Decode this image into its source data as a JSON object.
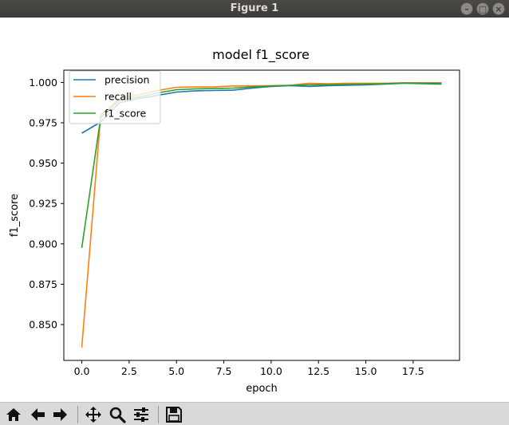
{
  "window": {
    "title": "Figure 1",
    "controls": {
      "minimize": "–",
      "maximize": "□",
      "close": "×"
    }
  },
  "toolbar": {
    "buttons": [
      {
        "icon": "home-icon"
      },
      {
        "icon": "back-arrow-icon"
      },
      {
        "icon": "forward-arrow-icon"
      },
      {
        "icon": "pan-icon"
      },
      {
        "icon": "zoom-icon"
      },
      {
        "icon": "configure-subplots-icon"
      },
      {
        "icon": "save-icon"
      }
    ]
  },
  "chart_data": {
    "type": "line",
    "title": "model f1_score",
    "xlabel": "epoch",
    "ylabel": "f1_score",
    "xlim": [
      -0.95,
      19.95
    ],
    "ylim": [
      0.8278,
      1.0076
    ],
    "xticks": [
      0.0,
      2.5,
      5.0,
      7.5,
      10.0,
      12.5,
      15.0,
      17.5
    ],
    "xtick_labels": [
      "0.0",
      "2.5",
      "5.0",
      "7.5",
      "10.0",
      "12.5",
      "15.0",
      "17.5"
    ],
    "yticks": [
      0.85,
      0.875,
      0.9,
      0.925,
      0.95,
      0.975,
      1.0
    ],
    "ytick_labels": [
      "0.850",
      "0.875",
      "0.900",
      "0.925",
      "0.950",
      "0.975",
      "1.000"
    ],
    "grid": false,
    "legend_position": "upper left",
    "x": [
      0,
      1,
      2,
      3,
      4,
      5,
      6,
      7,
      8,
      9,
      10,
      11,
      12,
      13,
      14,
      15,
      16,
      17,
      18,
      19
    ],
    "series": [
      {
        "name": "precision",
        "color": "#1f77b4",
        "values": [
          0.9686,
          0.9755,
          0.9875,
          0.99,
          0.992,
          0.994,
          0.9948,
          0.995,
          0.9952,
          0.9965,
          0.9975,
          0.998,
          0.9975,
          0.998,
          0.9982,
          0.9985,
          0.999,
          0.9995,
          0.9992,
          0.999
        ]
      },
      {
        "name": "recall",
        "color": "#ff7f0e",
        "values": [
          0.8358,
          0.98,
          0.99,
          0.9925,
          0.995,
          0.997,
          0.9972,
          0.9973,
          0.9978,
          0.9978,
          0.998,
          0.9982,
          0.9995,
          0.9992,
          0.9995,
          0.9995,
          0.9995,
          0.9998,
          0.9998,
          0.9998
        ]
      },
      {
        "name": "f1_score",
        "color": "#2ca02c",
        "values": [
          0.8975,
          0.9785,
          0.989,
          0.991,
          0.9935,
          0.9955,
          0.996,
          0.9962,
          0.9965,
          0.9972,
          0.9978,
          0.9982,
          0.9985,
          0.9986,
          0.9988,
          0.999,
          0.9992,
          0.9996,
          0.9995,
          0.9994
        ]
      }
    ]
  }
}
